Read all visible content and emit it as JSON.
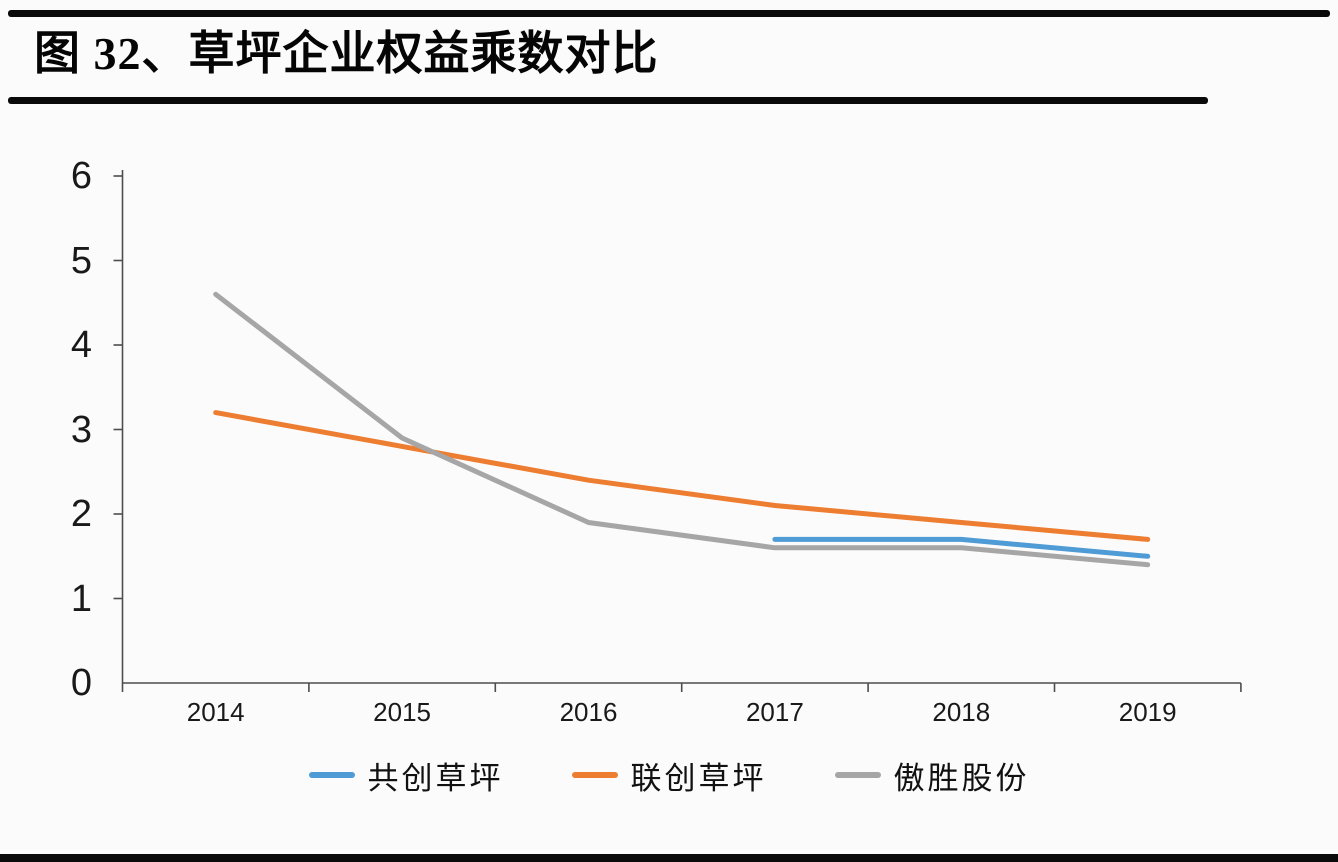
{
  "page": {
    "figure_title": "图 32、草坪企业权益乘数对比",
    "rule_color": "#0a0a0a",
    "background_color": "#fcfbfb"
  },
  "chart_data": {
    "type": "line",
    "title": "草坪企业权益乘数对比",
    "xlabel": "",
    "ylabel": "",
    "categories": [
      "2014",
      "2015",
      "2016",
      "2017",
      "2018",
      "2019"
    ],
    "y_ticks": [
      0,
      1,
      2,
      3,
      4,
      5,
      6
    ],
    "ylim": [
      0,
      6
    ],
    "grid": false,
    "legend_position": "bottom-center",
    "axis_color": "#4d4d4d",
    "line_width": 5,
    "series": [
      {
        "name": "共创草坪",
        "color": "#4E9BD5",
        "values": [
          null,
          null,
          null,
          1.7,
          1.7,
          1.5
        ]
      },
      {
        "name": "联创草坪",
        "color": "#ED7D31",
        "values": [
          3.2,
          2.8,
          2.4,
          2.1,
          1.9,
          1.7
        ]
      },
      {
        "name": "傲胜股份",
        "color": "#A6A6A6",
        "values": [
          4.6,
          2.9,
          1.9,
          1.6,
          1.6,
          1.4
        ]
      }
    ]
  }
}
